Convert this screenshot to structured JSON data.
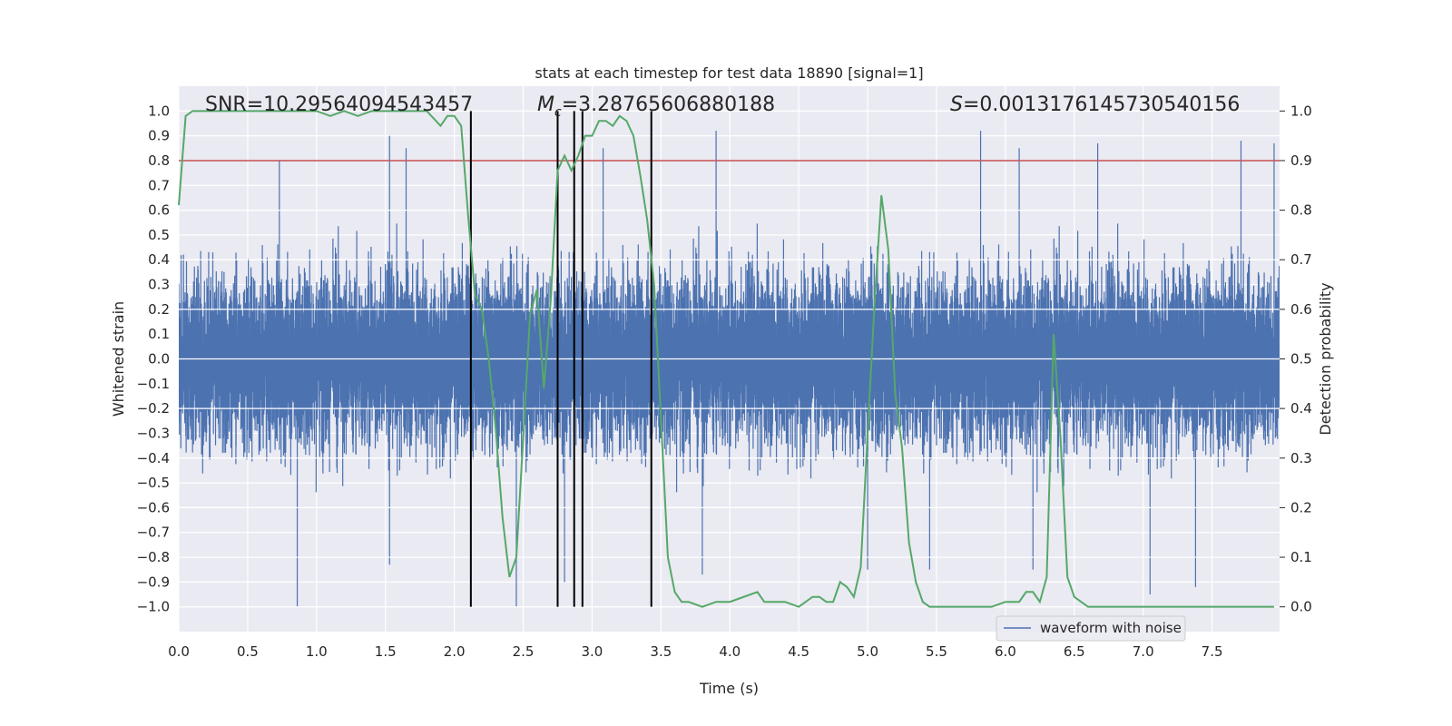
{
  "chart_data": {
    "type": "line",
    "title": "stats at each timestep for test data 18890 [signal=1]",
    "xlabel": "Time (s)",
    "ylabel": "Whitened strain",
    "y2label": "Detection probability",
    "xlim": [
      0.0,
      7.99
    ],
    "ylim": [
      -1.1,
      1.1
    ],
    "y2lim": [
      -0.05,
      1.05
    ],
    "x_ticks": [
      "0.0",
      "0.5",
      "1.0",
      "1.5",
      "2.0",
      "2.5",
      "3.0",
      "3.5",
      "4.0",
      "4.5",
      "5.0",
      "5.5",
      "6.0",
      "6.5",
      "7.0",
      "7.5"
    ],
    "y_ticks": [
      "1.0",
      "0.9",
      "0.8",
      "0.7",
      "0.6",
      "0.5",
      "0.4",
      "0.3",
      "0.2",
      "0.1",
      "0.0",
      "−0.1",
      "−0.2",
      "−0.3",
      "−0.4",
      "−0.5",
      "−0.6",
      "−0.7",
      "−0.8",
      "−0.9",
      "−1.0"
    ],
    "y_tick_values": [
      1.0,
      0.9,
      0.8,
      0.7,
      0.6,
      0.5,
      0.4,
      0.3,
      0.2,
      0.1,
      0.0,
      -0.1,
      -0.2,
      -0.3,
      -0.4,
      -0.5,
      -0.6,
      -0.7,
      -0.8,
      -0.9,
      -1.0
    ],
    "y2_ticks": [
      "1.0",
      "0.9",
      "0.8",
      "0.7",
      "0.6",
      "0.5",
      "0.4",
      "0.3",
      "0.2",
      "0.1",
      "0.0"
    ],
    "y2_tick_values": [
      1.0,
      0.9,
      0.8,
      0.7,
      0.6,
      0.5,
      0.4,
      0.3,
      0.2,
      0.1,
      0.0
    ],
    "annotations": {
      "snr": "SNR=10.29564094543457",
      "mc_symbol": "M",
      "mc_sub": "c",
      "mc_value": "=3.28765606880188",
      "s_symbol": "S",
      "s_value": "=0.0013176145730540156"
    },
    "threshold": {
      "y2": 0.9,
      "color": "#c44e52"
    },
    "vertical_lines_x": [
      2.12,
      2.75,
      2.87,
      2.93,
      3.43
    ],
    "waveform": {
      "name": "waveform with noise",
      "color": "#4c72b0",
      "sample_rate_display": 2000,
      "notable_peaks": [
        {
          "x": 0.73,
          "y": 0.8
        },
        {
          "x": 1.53,
          "y": 0.9
        },
        {
          "x": 1.65,
          "y": 0.85
        },
        {
          "x": 3.08,
          "y": 0.85
        },
        {
          "x": 3.9,
          "y": 0.92
        },
        {
          "x": 5.82,
          "y": 0.92
        },
        {
          "x": 6.1,
          "y": 0.85
        },
        {
          "x": 6.67,
          "y": 0.87
        },
        {
          "x": 7.71,
          "y": 0.88
        },
        {
          "x": 7.95,
          "y": 0.87
        },
        {
          "x": 0.86,
          "y": -1.0
        },
        {
          "x": 2.45,
          "y": -1.0
        },
        {
          "x": 2.8,
          "y": -0.9
        },
        {
          "x": 1.53,
          "y": -0.83
        },
        {
          "x": 3.8,
          "y": -0.87
        },
        {
          "x": 5.0,
          "y": -0.85
        },
        {
          "x": 5.45,
          "y": -0.85
        },
        {
          "x": 7.05,
          "y": -0.95
        },
        {
          "x": 7.38,
          "y": -0.92
        },
        {
          "x": 6.2,
          "y": -0.85
        }
      ]
    },
    "probability": {
      "color": "#55a868",
      "x": [
        0.0,
        0.05,
        0.1,
        0.2,
        0.3,
        0.4,
        0.5,
        0.6,
        0.7,
        0.8,
        0.9,
        1.0,
        1.1,
        1.2,
        1.3,
        1.4,
        1.5,
        1.6,
        1.7,
        1.8,
        1.9,
        1.95,
        2.0,
        2.05,
        2.1,
        2.15,
        2.2,
        2.25,
        2.3,
        2.35,
        2.4,
        2.45,
        2.5,
        2.55,
        2.6,
        2.65,
        2.7,
        2.75,
        2.8,
        2.85,
        2.9,
        2.95,
        3.0,
        3.05,
        3.1,
        3.15,
        3.2,
        3.25,
        3.3,
        3.35,
        3.4,
        3.45,
        3.5,
        3.55,
        3.6,
        3.65,
        3.7,
        3.8,
        3.9,
        4.0,
        4.1,
        4.2,
        4.25,
        4.3,
        4.4,
        4.5,
        4.55,
        4.6,
        4.65,
        4.7,
        4.75,
        4.8,
        4.85,
        4.9,
        4.95,
        5.0,
        5.05,
        5.1,
        5.15,
        5.2,
        5.25,
        5.3,
        5.35,
        5.4,
        5.45,
        5.5,
        5.55,
        5.6,
        5.7,
        5.8,
        5.9,
        6.0,
        6.1,
        6.15,
        6.2,
        6.25,
        6.3,
        6.35,
        6.4,
        6.45,
        6.5,
        6.55,
        6.6,
        6.65,
        6.7,
        6.75,
        6.8,
        6.9,
        7.0,
        7.5,
        7.8,
        7.95
      ],
      "y": [
        0.81,
        0.99,
        1.0,
        1.0,
        1.0,
        1.0,
        1.0,
        1.0,
        1.0,
        1.0,
        1.0,
        1.0,
        0.99,
        1.0,
        0.99,
        1.0,
        1.0,
        1.0,
        1.0,
        1.0,
        0.97,
        0.99,
        0.99,
        0.97,
        0.79,
        0.63,
        0.6,
        0.5,
        0.36,
        0.18,
        0.06,
        0.1,
        0.34,
        0.59,
        0.64,
        0.44,
        0.62,
        0.88,
        0.91,
        0.88,
        0.91,
        0.95,
        0.95,
        0.98,
        0.98,
        0.97,
        0.99,
        0.98,
        0.95,
        0.87,
        0.78,
        0.65,
        0.38,
        0.1,
        0.03,
        0.01,
        0.01,
        0.0,
        0.01,
        0.01,
        0.02,
        0.03,
        0.01,
        0.01,
        0.01,
        0.0,
        0.01,
        0.02,
        0.02,
        0.01,
        0.01,
        0.05,
        0.04,
        0.02,
        0.08,
        0.35,
        0.61,
        0.83,
        0.72,
        0.43,
        0.32,
        0.13,
        0.05,
        0.01,
        0.0,
        0.0,
        0.0,
        0.0,
        0.0,
        0.0,
        0.0,
        0.01,
        0.01,
        0.03,
        0.03,
        0.01,
        0.06,
        0.55,
        0.34,
        0.06,
        0.02,
        0.01,
        0.0,
        0.0,
        0.0,
        0.0,
        0.0,
        0.0,
        0.0,
        0.0,
        0.0,
        0.0
      ]
    },
    "legend": {
      "entries": [
        "waveform with noise"
      ],
      "location": "lower-right"
    }
  }
}
